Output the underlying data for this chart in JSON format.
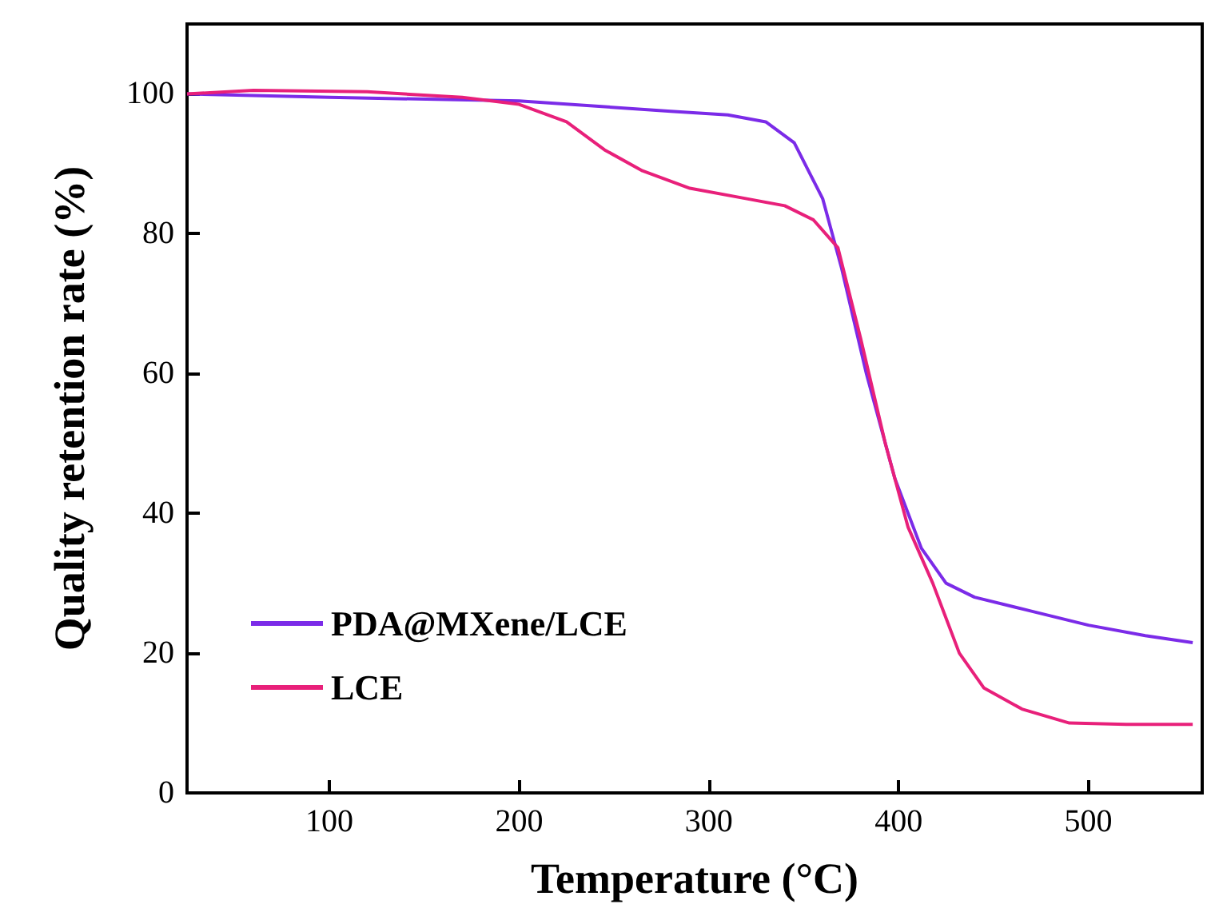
{
  "chart_data": {
    "type": "line",
    "xlabel": "Temperature (°C)",
    "ylabel": "Quality retention rate (%)",
    "xlim": [
      25,
      560
    ],
    "ylim": [
      0,
      110
    ],
    "xticks": [
      100,
      200,
      300,
      400,
      500
    ],
    "yticks": [
      0,
      20,
      40,
      60,
      80,
      100
    ],
    "grid": false,
    "legend": "bottom left",
    "marker": "none",
    "line_style": "solid",
    "series": [
      {
        "name": "PDA@MXene/LCE",
        "color": "#7b2be8",
        "x": [
          25,
          100,
          200,
          280,
          310,
          330,
          345,
          360,
          370,
          383,
          398,
          412,
          425,
          440,
          470,
          500,
          530,
          555
        ],
        "values": [
          100,
          99.5,
          99,
          97.5,
          97,
          96,
          93,
          85,
          75,
          60,
          45,
          35,
          30,
          28,
          26,
          24,
          22.5,
          21.5
        ]
      },
      {
        "name": "LCE",
        "color": "#e8207a",
        "x": [
          25,
          60,
          120,
          170,
          200,
          225,
          245,
          265,
          290,
          320,
          340,
          355,
          368,
          380,
          393,
          405,
          418,
          432,
          445,
          465,
          490,
          520,
          555
        ],
        "values": [
          100,
          100.5,
          100.3,
          99.5,
          98.5,
          96,
          92,
          89,
          86.5,
          85,
          84,
          82,
          78,
          65,
          50,
          38,
          30,
          20,
          15,
          12,
          10,
          9.8,
          9.8
        ]
      }
    ]
  }
}
